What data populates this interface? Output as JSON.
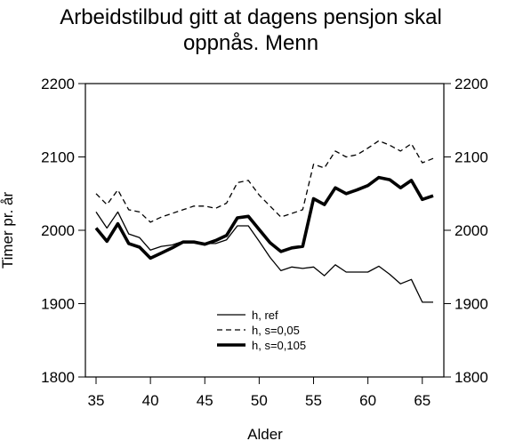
{
  "chart_data": {
    "type": "line",
    "title_lines": [
      "Arbeidstilbud gitt at dagens pensjon skal",
      "oppnås. Menn"
    ],
    "xlabel": "Alder",
    "ylabel": "Timer pr. år",
    "xlim": [
      35,
      66
    ],
    "ylim": [
      1800,
      2200
    ],
    "xticks": [
      35,
      40,
      45,
      50,
      55,
      60,
      65
    ],
    "yticks": [
      1800,
      1900,
      2000,
      2100,
      2200
    ],
    "y_axis_right_mirrored": true,
    "grid": false,
    "legend_position": "bottom-center",
    "x": [
      35,
      36,
      37,
      38,
      39,
      40,
      41,
      42,
      43,
      44,
      45,
      46,
      47,
      48,
      49,
      50,
      51,
      52,
      53,
      54,
      55,
      56,
      57,
      58,
      59,
      60,
      61,
      62,
      63,
      64,
      65,
      66
    ],
    "series": [
      {
        "name": "h, ref",
        "style": "solid-thin",
        "color": "#000000",
        "values": [
          2025,
          2003,
          2025,
          1995,
          1990,
          1973,
          1978,
          1980,
          1985,
          1985,
          1982,
          1982,
          1987,
          2006,
          2006,
          1985,
          1963,
          1945,
          1950,
          1948,
          1950,
          1938,
          1953,
          1943,
          1943,
          1943,
          1951,
          1940,
          1927,
          1933,
          1902,
          1902
        ]
      },
      {
        "name": "h, s=0,05",
        "style": "dashed",
        "color": "#000000",
        "values": [
          2050,
          2035,
          2055,
          2028,
          2025,
          2011,
          2018,
          2023,
          2028,
          2033,
          2033,
          2030,
          2037,
          2065,
          2068,
          2048,
          2033,
          2018,
          2023,
          2028,
          2090,
          2085,
          2108,
          2100,
          2103,
          2112,
          2122,
          2116,
          2108,
          2118,
          2092,
          2098
        ]
      },
      {
        "name": "h, s=0,105",
        "style": "solid-thick",
        "color": "#000000",
        "values": [
          2003,
          1985,
          2009,
          1982,
          1977,
          1962,
          1969,
          1976,
          1984,
          1984,
          1981,
          1986,
          1993,
          2017,
          2019,
          2001,
          1983,
          1971,
          1976,
          1978,
          2043,
          2035,
          2058,
          2050,
          2055,
          2061,
          2072,
          2069,
          2058,
          2068,
          2042,
          2047
        ]
      }
    ]
  }
}
